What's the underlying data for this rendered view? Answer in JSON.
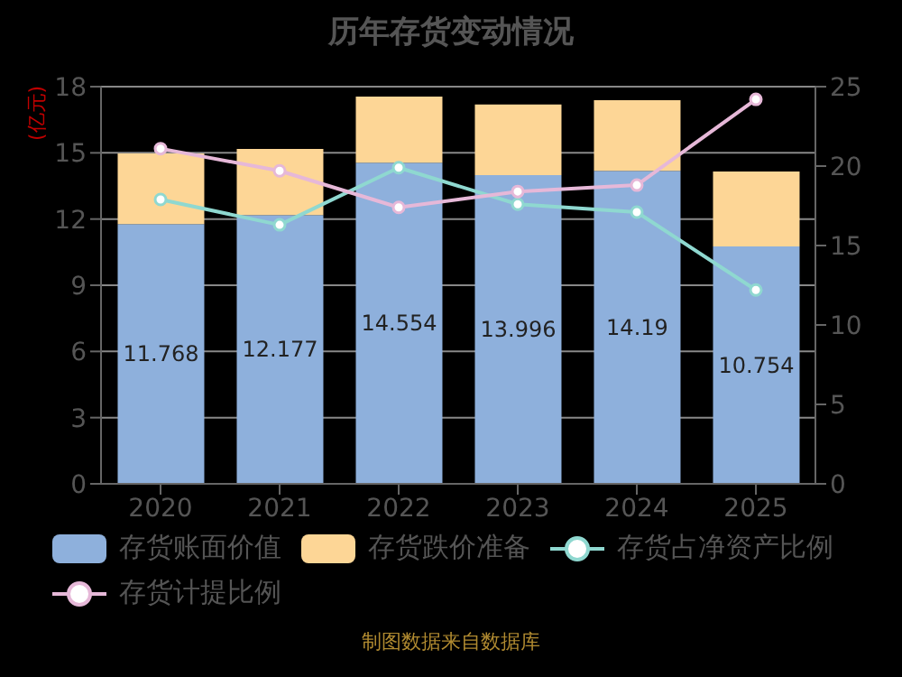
{
  "chart_data": {
    "type": "bar",
    "title": "历年存货变动情况",
    "ylabel": "(亿元)",
    "categories": [
      "2020",
      "2021",
      "2022",
      "2023",
      "2024",
      "2025"
    ],
    "stacked": true,
    "series": [
      {
        "name": "存货账面价值",
        "color": "#8eb0dc",
        "values": [
          11.768,
          12.177,
          14.554,
          13.996,
          14.19,
          10.754
        ],
        "value_labels": [
          "11.768",
          "12.177",
          "14.554",
          "13.996",
          "14.19",
          "10.754"
        ]
      },
      {
        "name": "存货跌价准备",
        "color": "#fdd696",
        "values": [
          3.2,
          3.0,
          3.0,
          3.2,
          3.2,
          3.4
        ]
      },
      {
        "name": "存货占净资产比例",
        "type": "line",
        "axis": "y2",
        "color": "#8fd8d0",
        "values": [
          17.9,
          16.3,
          19.9,
          17.6,
          17.1,
          12.2
        ]
      },
      {
        "name": "存货计提比例",
        "type": "line",
        "axis": "y2",
        "color": "#e6b8d8",
        "values": [
          21.1,
          19.7,
          17.4,
          18.4,
          18.8,
          24.2
        ]
      }
    ],
    "ylim": [
      0,
      18
    ],
    "yticks": [
      0,
      3,
      6,
      9,
      12,
      15,
      18
    ],
    "y2lim": [
      0,
      25
    ],
    "y2ticks": [
      0,
      5,
      10,
      15,
      20,
      25
    ],
    "grid": "y",
    "legend": "bottom",
    "marker": "circle",
    "line_style": "solid",
    "annotations": [
      "制图数据来自数据库"
    ]
  }
}
